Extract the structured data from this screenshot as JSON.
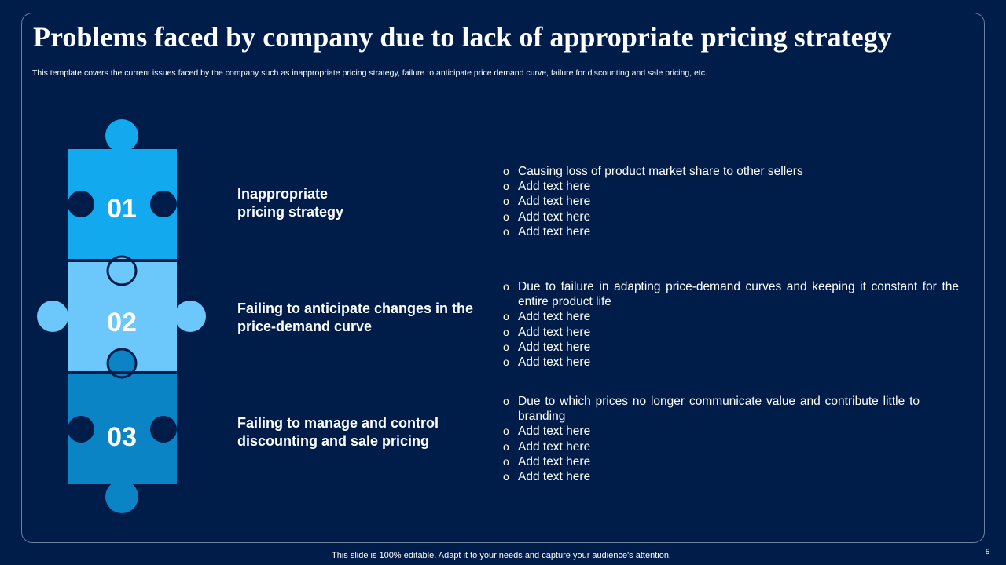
{
  "slide": {
    "title": "Problems faced by company due to lack of appropriate pricing strategy",
    "subtitle": "This template covers the current issues faced by the company such as inappropriate pricing strategy, failure to anticipate price demand curve, failure for discounting and sale pricing, etc.",
    "footer": "This slide is 100% editable. Adapt it to your needs and capture your audience's attention.",
    "page_number": "5"
  },
  "colors": {
    "background": "#001d4a",
    "piece_1": "#12a9ee",
    "piece_2": "#6cc7fb",
    "piece_3": "#0a84c4"
  },
  "items": [
    {
      "number": "01",
      "heading": "Inappropriate pricing strategy",
      "bullets": [
        "Causing loss of product market share to other sellers",
        "Add text here",
        "Add text here",
        "Add text here",
        "Add text here"
      ]
    },
    {
      "number": "02",
      "heading": "Failing to anticipate changes in the price-demand curve",
      "bullets": [
        "Due to failure in adapting price-demand curves  and keeping it constant for the entire product life",
        "Add text here",
        "Add text here",
        "Add text here",
        "Add text here"
      ]
    },
    {
      "number": "03",
      "heading": "Failing to manage and control discounting and sale pricing",
      "bullets": [
        "Due to which prices no longer communicate value and contribute little to branding",
        "Add text here",
        "Add text here",
        "Add text here",
        "Add text here"
      ]
    }
  ]
}
